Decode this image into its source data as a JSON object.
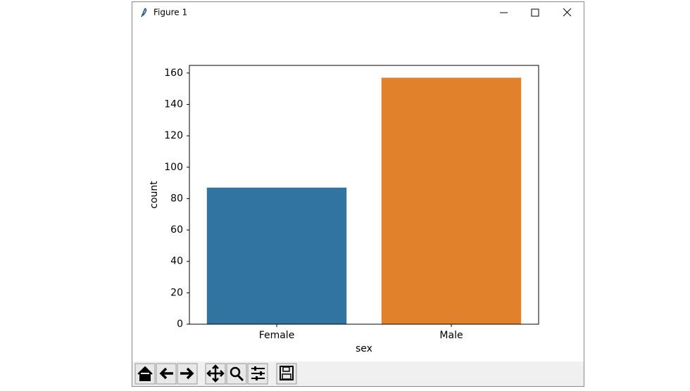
{
  "window": {
    "title": "Figure 1"
  },
  "chart_data": {
    "type": "bar",
    "xlabel": "sex",
    "ylabel": "count",
    "categories": [
      "Female",
      "Male"
    ],
    "values": [
      87,
      157
    ],
    "colors": [
      "#3274a1",
      "#e1812c"
    ],
    "ylim": [
      0,
      164.85
    ],
    "yticks": [
      0,
      20,
      40,
      60,
      80,
      100,
      120,
      140,
      160
    ],
    "grid": false
  }
}
